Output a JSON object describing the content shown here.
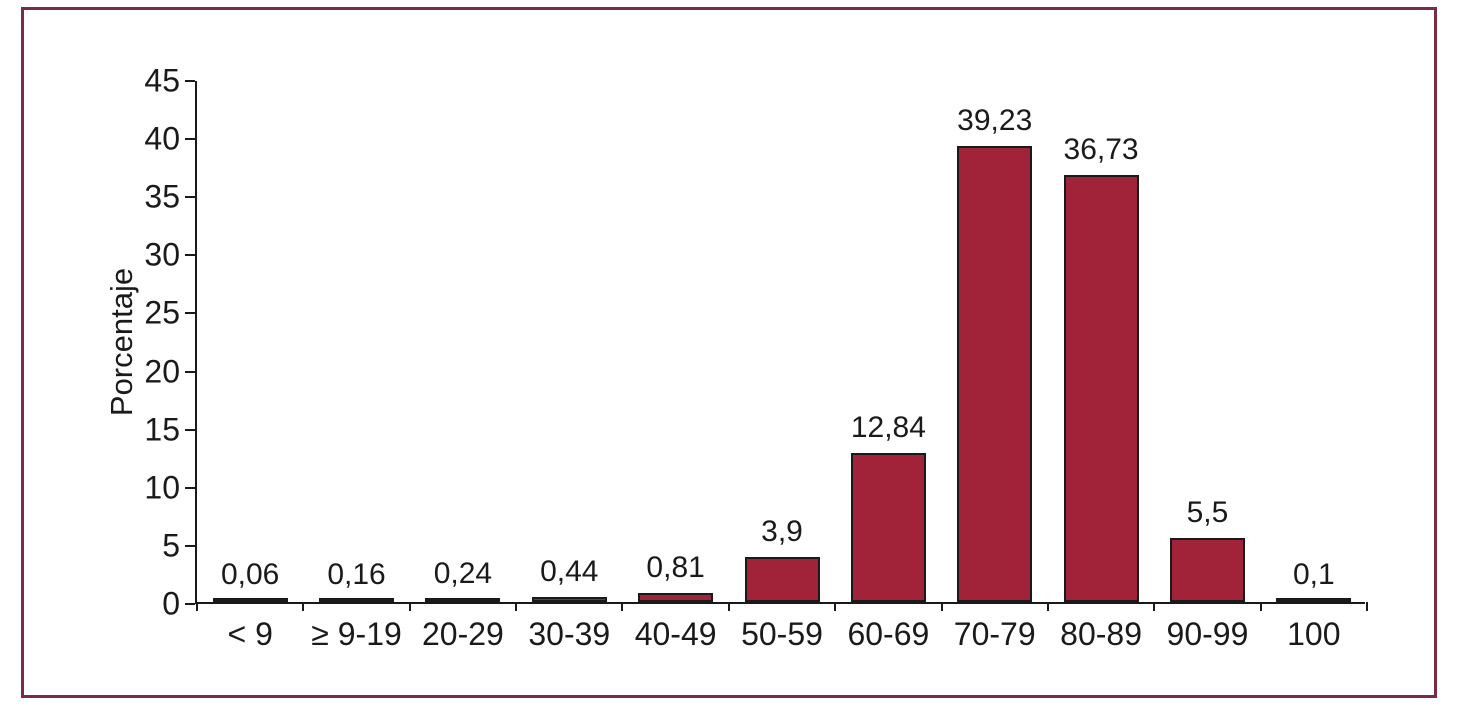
{
  "chart_data": {
    "type": "bar",
    "categories": [
      "< 9",
      "≥ 9-19",
      "20-29",
      "30-39",
      "40-49",
      "50-59",
      "60-69",
      "70-79",
      "80-89",
      "90-99",
      "100"
    ],
    "values": [
      0.06,
      0.16,
      0.24,
      0.44,
      0.81,
      3.9,
      12.84,
      39.23,
      36.73,
      5.5,
      0.1
    ],
    "value_labels": [
      "0,06",
      "0,16",
      "0,24",
      "0,44",
      "0,81",
      "3,9",
      "12,84",
      "39,23",
      "36,73",
      "5,5",
      "0,1"
    ],
    "title": "",
    "xlabel": "",
    "ylabel": "Porcentaje",
    "ylim": [
      0,
      45
    ],
    "yticks": [
      0,
      5,
      10,
      15,
      20,
      25,
      30,
      35,
      40,
      45
    ],
    "grid": false,
    "legend": null,
    "colors": {
      "bar_fill": "#a02339",
      "bar_border": "#1a1a1a",
      "axis": "#1a1a1a",
      "frame_border": "#7d2b43",
      "background": "#ffffff"
    }
  }
}
